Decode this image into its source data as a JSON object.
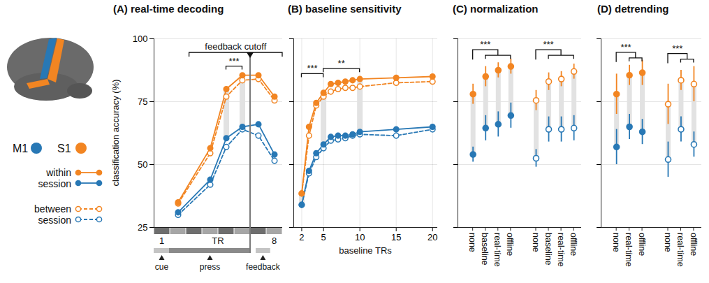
{
  "key": {
    "regions": [
      {
        "name": "M1",
        "color": "#2878b5"
      },
      {
        "name": "S1",
        "color": "#f28522"
      }
    ],
    "sessions": [
      {
        "name": "within session",
        "marker": "filled",
        "line_style": "solid"
      },
      {
        "name": "between session",
        "marker": "open",
        "line_style": "dashed"
      }
    ]
  },
  "chart_data": [
    {
      "type": "line",
      "title": "(A) real-time decoding",
      "xlabel": "TR",
      "ylabel": "classification accuracy (%)",
      "xlim": [
        0.5,
        8.5
      ],
      "xticks": [
        1,
        8
      ],
      "ylim": [
        25,
        100
      ],
      "yticks": [
        25,
        50,
        75,
        100
      ],
      "grid": true,
      "x": [
        2,
        4,
        5,
        6,
        7,
        8
      ],
      "series": [
        {
          "name": "S1",
          "group": "within session",
          "color": "#f28522",
          "marker": "filled",
          "line_style": "solid",
          "values": [
            35,
            56.5,
            80,
            85.5,
            85.5,
            77
          ]
        },
        {
          "name": "S1",
          "group": "between session",
          "color": "#f28522",
          "marker": "open",
          "line_style": "dashed",
          "values": [
            34.5,
            54.5,
            77,
            83.5,
            84,
            75.5
          ]
        },
        {
          "name": "M1",
          "group": "within session",
          "color": "#2878b5",
          "marker": "filled",
          "line_style": "solid",
          "values": [
            31,
            44,
            60.5,
            65,
            66,
            54
          ]
        },
        {
          "name": "M1",
          "group": "between session",
          "color": "#2878b5",
          "marker": "open",
          "line_style": "dashed",
          "values": [
            30,
            42,
            57,
            64,
            61.5,
            51.5
          ]
        }
      ],
      "events": [
        {
          "label": "cue",
          "x": 1
        },
        {
          "label": "press",
          "x": 4
        },
        {
          "label": "feedback",
          "x": 7.3
        }
      ],
      "feedback_cutoff": {
        "label": "feedback cutoff",
        "x": 6.5,
        "x1": 2.7,
        "x2": 8.5
      },
      "significance": [
        {
          "x1": 5,
          "x2": 6,
          "y": 89,
          "label": "***"
        }
      ]
    },
    {
      "type": "line",
      "title": "(B) baseline sensitivity",
      "xlabel": "baseline TRs",
      "xlim": [
        0.9,
        20.7
      ],
      "xticks": [
        2,
        5,
        10,
        15,
        20
      ],
      "ylim": [
        25,
        100
      ],
      "yticks": [
        25,
        50,
        75,
        100
      ],
      "grid": true,
      "tick_labels": "x",
      "x": [
        2,
        3,
        4,
        5,
        6,
        7,
        8,
        9,
        10,
        15,
        20
      ],
      "series": [
        {
          "name": "S1",
          "group": "within session",
          "color": "#f28522",
          "marker": "filled",
          "line_style": "solid",
          "values": [
            38.5,
            65,
            74.5,
            78.5,
            82,
            82.5,
            83,
            83.5,
            84,
            84.5,
            85
          ]
        },
        {
          "name": "S1",
          "group": "between session",
          "color": "#f28522",
          "marker": "open",
          "line_style": "dashed",
          "values": [
            38.5,
            61.5,
            73.5,
            77,
            79,
            80,
            80.5,
            80.5,
            81,
            82.5,
            83
          ]
        },
        {
          "name": "M1",
          "group": "within session",
          "color": "#2878b5",
          "marker": "filled",
          "line_style": "solid",
          "values": [
            34,
            47.5,
            54.5,
            58,
            61,
            61.5,
            61.5,
            62,
            63,
            64,
            65
          ]
        },
        {
          "name": "M1",
          "group": "between session",
          "color": "#2878b5",
          "marker": "open",
          "line_style": "dashed",
          "values": [
            34,
            46.5,
            53,
            56.5,
            59.5,
            60,
            60.5,
            61.5,
            62,
            61.5,
            64
          ]
        }
      ],
      "significance": [
        {
          "x1": 2,
          "x2": 5,
          "y": 86,
          "label": "***"
        },
        {
          "x1": 5,
          "x2": 10,
          "y": 88,
          "label": "**"
        }
      ]
    },
    {
      "type": "scatter",
      "title": "(C) normalization",
      "ylim": [
        25,
        100
      ],
      "yticks": [
        25,
        50,
        75,
        100
      ],
      "grid": true,
      "tick_labels": "x",
      "categories": [
        "none",
        "baseline",
        "real-time",
        "offline"
      ],
      "series": [
        {
          "name": "S1",
          "group": "within session",
          "color": "#f28522",
          "marker": "filled",
          "values": [
            78,
            85,
            87.5,
            89
          ],
          "errors": [
            4,
            4,
            3,
            3
          ]
        },
        {
          "name": "M1",
          "group": "within session",
          "color": "#2878b5",
          "marker": "filled",
          "values": [
            54,
            64.5,
            66,
            69.5
          ],
          "errors": [
            3,
            5,
            5,
            5
          ]
        },
        {
          "name": "S1",
          "group": "between session",
          "color": "#f28522",
          "marker": "open",
          "values": [
            75.5,
            83,
            84,
            87
          ],
          "errors": [
            4,
            3.5,
            3,
            3
          ]
        },
        {
          "name": "M1",
          "group": "between session",
          "color": "#2878b5",
          "marker": "open",
          "values": [
            52.5,
            64,
            64,
            64.5
          ],
          "errors": [
            3.5,
            5,
            5,
            5
          ]
        }
      ],
      "significance": [
        {
          "group": "within session",
          "from": "none",
          "to": [
            "baseline",
            "real-time",
            "offline"
          ],
          "y": 95.5,
          "label": "***"
        },
        {
          "group": "between session",
          "from": "none",
          "to": [
            "baseline",
            "real-time",
            "offline"
          ],
          "y": 95.5,
          "label": "***"
        }
      ]
    },
    {
      "type": "scatter",
      "title": "(D) detrending",
      "ylim": [
        25,
        100
      ],
      "yticks": [
        25,
        50,
        75,
        100
      ],
      "grid": true,
      "tick_labels": "x",
      "categories": [
        "none",
        "real-time",
        "offline"
      ],
      "series": [
        {
          "name": "S1",
          "group": "within session",
          "color": "#f28522",
          "marker": "filled",
          "values": [
            78,
            85.5,
            86.5
          ],
          "errors": [
            8,
            4,
            5
          ]
        },
        {
          "name": "M1",
          "group": "within session",
          "color": "#2878b5",
          "marker": "filled",
          "values": [
            57,
            65,
            63
          ],
          "errors": [
            7,
            5,
            5
          ]
        },
        {
          "name": "S1",
          "group": "between session",
          "color": "#f28522",
          "marker": "open",
          "values": [
            74,
            83.5,
            82
          ],
          "errors": [
            8,
            4,
            7
          ]
        },
        {
          "name": "M1",
          "group": "between session",
          "color": "#2878b5",
          "marker": "open",
          "values": [
            52,
            64,
            58
          ],
          "errors": [
            7,
            5,
            5
          ]
        }
      ],
      "significance": [
        {
          "group": "within session",
          "from": "none",
          "to": [
            "real-time",
            "offline"
          ],
          "y": 94.5,
          "label": "***"
        },
        {
          "group": "between session",
          "from": "none",
          "to": [
            "real-time",
            "offline"
          ],
          "y": 94,
          "label": "***"
        }
      ]
    }
  ]
}
